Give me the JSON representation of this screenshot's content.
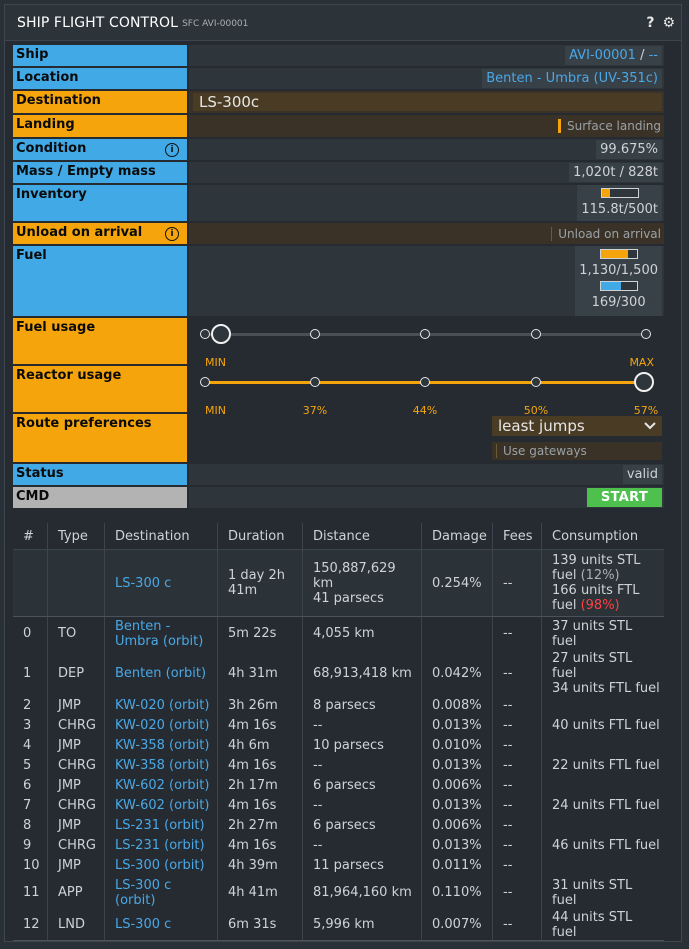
{
  "window": {
    "title": "SHIP FLIGHT CONTROL",
    "subtitle": "SFC AVI-00001",
    "help_glyph": "?",
    "settings_glyph": "⚙"
  },
  "form": {
    "ship": {
      "label": "Ship",
      "value": "AVI-00001",
      "sep": " / ",
      "extra": "--"
    },
    "location": {
      "label": "Location",
      "value": "Benten - Umbra (UV-351c)"
    },
    "destination": {
      "label": "Destination",
      "value": "LS-300c"
    },
    "landing": {
      "label": "Landing",
      "value": "Surface landing"
    },
    "condition": {
      "label": "Condition",
      "info": "i",
      "value": "99.675%"
    },
    "mass": {
      "label": "Mass / Empty mass",
      "value": "1,020t / 828t"
    },
    "inventory": {
      "label": "Inventory",
      "value": "115.8t/500t",
      "fill": 0.23,
      "color": "#f5a50b"
    },
    "unload": {
      "label": "Unload on arrival",
      "info": "i",
      "value": "Unload on arrival"
    },
    "fuel": {
      "label": "Fuel",
      "stl": "1,130/1,500",
      "stl_fill": 0.75,
      "stl_color": "#f5a50b",
      "ftl": "169/300",
      "ftl_fill": 0.56,
      "ftl_color": "#41a9e6"
    },
    "fuel_usage": {
      "label": "Fuel usage",
      "min": "MIN",
      "max": "MAX",
      "level": 0
    },
    "reactor_usage": {
      "label": "Reactor usage",
      "ticks": [
        "MIN",
        "37%",
        "44%",
        "50%",
        "57%"
      ],
      "level": 4
    },
    "route_prefs": {
      "label": "Route preferences",
      "selected": "least jumps",
      "gateways": "Use gateways"
    },
    "status": {
      "label": "Status",
      "value": "valid"
    },
    "cmd": {
      "label": "CMD",
      "start": "START"
    }
  },
  "table": {
    "headers": [
      "#",
      "Type",
      "Destination",
      "Duration",
      "Distance",
      "Damage",
      "Fees",
      "Consumption"
    ],
    "summary": {
      "dest": "LS-300 c",
      "duration1": "1 day 2h",
      "duration2": "41m",
      "distance1": "150,887,629 km",
      "distance2": "41 parsecs",
      "damage": "0.254%",
      "fees": "--",
      "c1": "139 units STL",
      "c2": "fuel",
      "c2p": "(12%)",
      "c3": "166 units FTL",
      "c4": "fuel",
      "c4p": "(98%)"
    },
    "rows": [
      {
        "n": "0",
        "type": "TO",
        "dest": "Benten - Umbra (orbit)",
        "dur": "5m 22s",
        "dist": "4,055 km",
        "dmg": "",
        "fees": "--",
        "cons": "37 units STL fuel",
        "cons2": ""
      },
      {
        "n": "1",
        "type": "DEP",
        "dest": "Benten (orbit)",
        "dur": "4h 31m",
        "dist": "68,913,418 km",
        "dmg": "0.042%",
        "fees": "--",
        "cons": "27 units STL fuel",
        "cons2": "34 units FTL fuel"
      },
      {
        "n": "2",
        "type": "JMP",
        "dest": "KW-020 (orbit)",
        "dur": "3h 26m",
        "dist": "8 parsecs",
        "dmg": "0.008%",
        "fees": "--",
        "cons": "",
        "cons2": ""
      },
      {
        "n": "3",
        "type": "CHRG",
        "dest": "KW-020 (orbit)",
        "dur": "4m 16s",
        "dist": "--",
        "dmg": "0.013%",
        "fees": "--",
        "cons": "40 units FTL fuel",
        "cons2": ""
      },
      {
        "n": "4",
        "type": "JMP",
        "dest": "KW-358 (orbit)",
        "dur": "4h 6m",
        "dist": "10 parsecs",
        "dmg": "0.010%",
        "fees": "--",
        "cons": "",
        "cons2": ""
      },
      {
        "n": "5",
        "type": "CHRG",
        "dest": "KW-358 (orbit)",
        "dur": "4m 16s",
        "dist": "--",
        "dmg": "0.013%",
        "fees": "--",
        "cons": "22 units FTL fuel",
        "cons2": ""
      },
      {
        "n": "6",
        "type": "JMP",
        "dest": "KW-602 (orbit)",
        "dur": "2h 17m",
        "dist": "6 parsecs",
        "dmg": "0.006%",
        "fees": "--",
        "cons": "",
        "cons2": ""
      },
      {
        "n": "7",
        "type": "CHRG",
        "dest": "KW-602 (orbit)",
        "dur": "4m 16s",
        "dist": "--",
        "dmg": "0.013%",
        "fees": "--",
        "cons": "24 units FTL fuel",
        "cons2": ""
      },
      {
        "n": "8",
        "type": "JMP",
        "dest": "LS-231 (orbit)",
        "dur": "2h 27m",
        "dist": "6 parsecs",
        "dmg": "0.006%",
        "fees": "--",
        "cons": "",
        "cons2": ""
      },
      {
        "n": "9",
        "type": "CHRG",
        "dest": "LS-231 (orbit)",
        "dur": "4m 16s",
        "dist": "--",
        "dmg": "0.013%",
        "fees": "--",
        "cons": "46 units FTL fuel",
        "cons2": ""
      },
      {
        "n": "10",
        "type": "JMP",
        "dest": "LS-300 (orbit)",
        "dur": "4h 39m",
        "dist": "11 parsecs",
        "dmg": "0.011%",
        "fees": "--",
        "cons": "",
        "cons2": ""
      },
      {
        "n": "11",
        "type": "APP",
        "dest": "LS-300 c (orbit)",
        "dur": "4h 41m",
        "dist": "81,964,160 km",
        "dmg": "0.110%",
        "fees": "--",
        "cons": "31 units STL fuel",
        "cons2": ""
      },
      {
        "n": "12",
        "type": "LND",
        "dest": "LS-300 c",
        "dur": "6m 31s",
        "dist": "5,996 km",
        "dmg": "0.007%",
        "fees": "--",
        "cons": "44 units STL fuel",
        "cons2": ""
      }
    ]
  }
}
